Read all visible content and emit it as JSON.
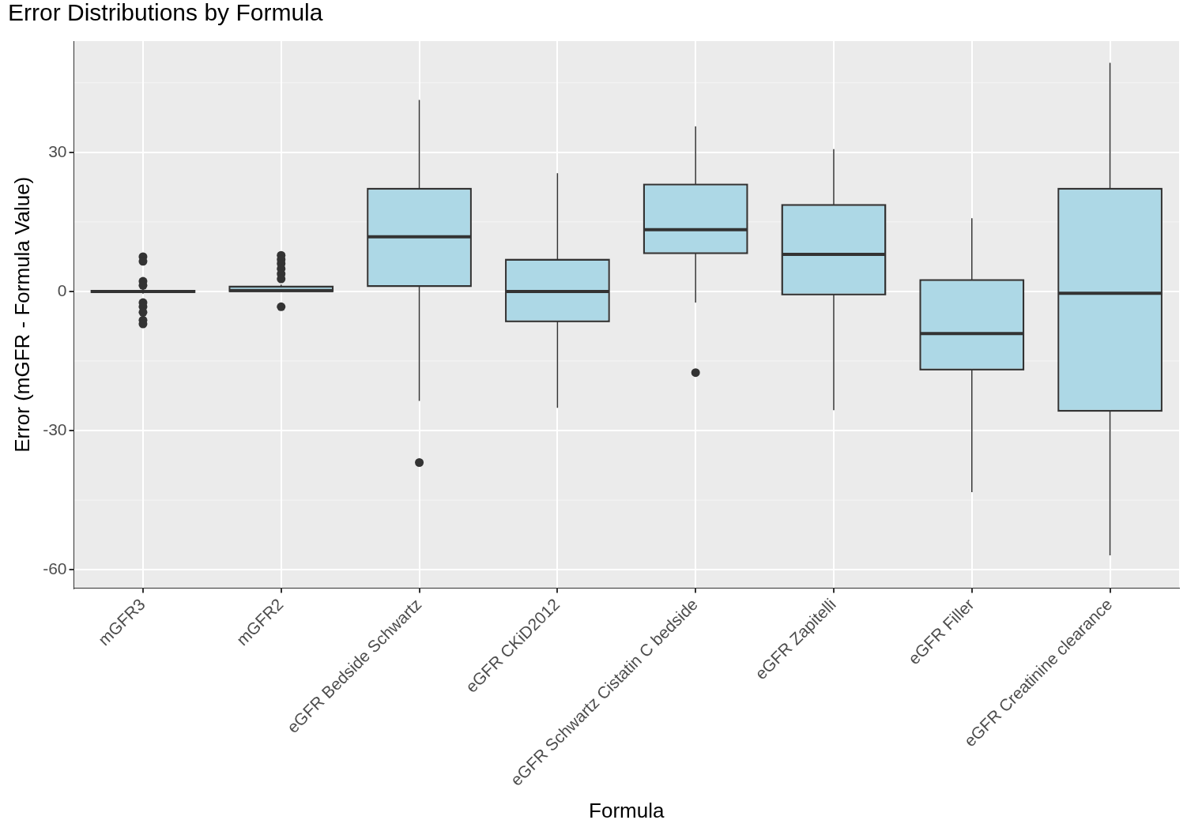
{
  "chart_data": {
    "type": "boxplot",
    "title": "Error Distributions by Formula",
    "x_label": "Formula",
    "y_label": "Error (mGFR - Formula Value)",
    "categories": [
      "mGFR3",
      "mGFR2",
      "eGFR Bedside Schwartz",
      "eGFR CKiD2012",
      "eGFR Schwartz Cistatin C bedside",
      "eGFR Zapitelli",
      "eGFR Filler",
      "eGFR Creatinine clearance"
    ],
    "boxes": [
      {
        "min": -0.5,
        "q1": -0.2,
        "median": 0,
        "q3": 0.2,
        "max": 0.5,
        "outliers": [
          7.5,
          6.5,
          2.2,
          1.3,
          -2.4,
          -3.3,
          -4.5,
          -6.2,
          -7.0
        ]
      },
      {
        "min": 0,
        "q1": 0,
        "median": 0.2,
        "q3": 1.1,
        "max": 1.5,
        "outliers": [
          7.8,
          6.9,
          6.0,
          4.9,
          3.8,
          2.7,
          -3.3
        ]
      },
      {
        "min": -23.6,
        "q1": 1.1,
        "median": 11.8,
        "q3": 22.2,
        "max": 41.3,
        "outliers": [
          -36.9
        ]
      },
      {
        "min": -25.1,
        "q1": -6.5,
        "median": 0,
        "q3": 6.9,
        "max": 25.5,
        "outliers": []
      },
      {
        "min": -2.4,
        "q1": 8.2,
        "median": 13.3,
        "q3": 23.1,
        "max": 35.6,
        "outliers": [
          -17.5
        ]
      },
      {
        "min": -25.6,
        "q1": -0.7,
        "median": 8.0,
        "q3": 18.7,
        "max": 30.7,
        "outliers": []
      },
      {
        "min": -43.3,
        "q1": -16.9,
        "median": -9.1,
        "q3": 2.5,
        "max": 15.8,
        "outliers": []
      },
      {
        "min": -56.9,
        "q1": -25.8,
        "median": -0.4,
        "q3": 22.2,
        "max": 49.3,
        "outliers": []
      }
    ],
    "color": "#add8e6",
    "ylim": [
      -64,
      54
    ],
    "yticks": [
      -60,
      -30,
      0,
      30
    ],
    "grid": true
  }
}
